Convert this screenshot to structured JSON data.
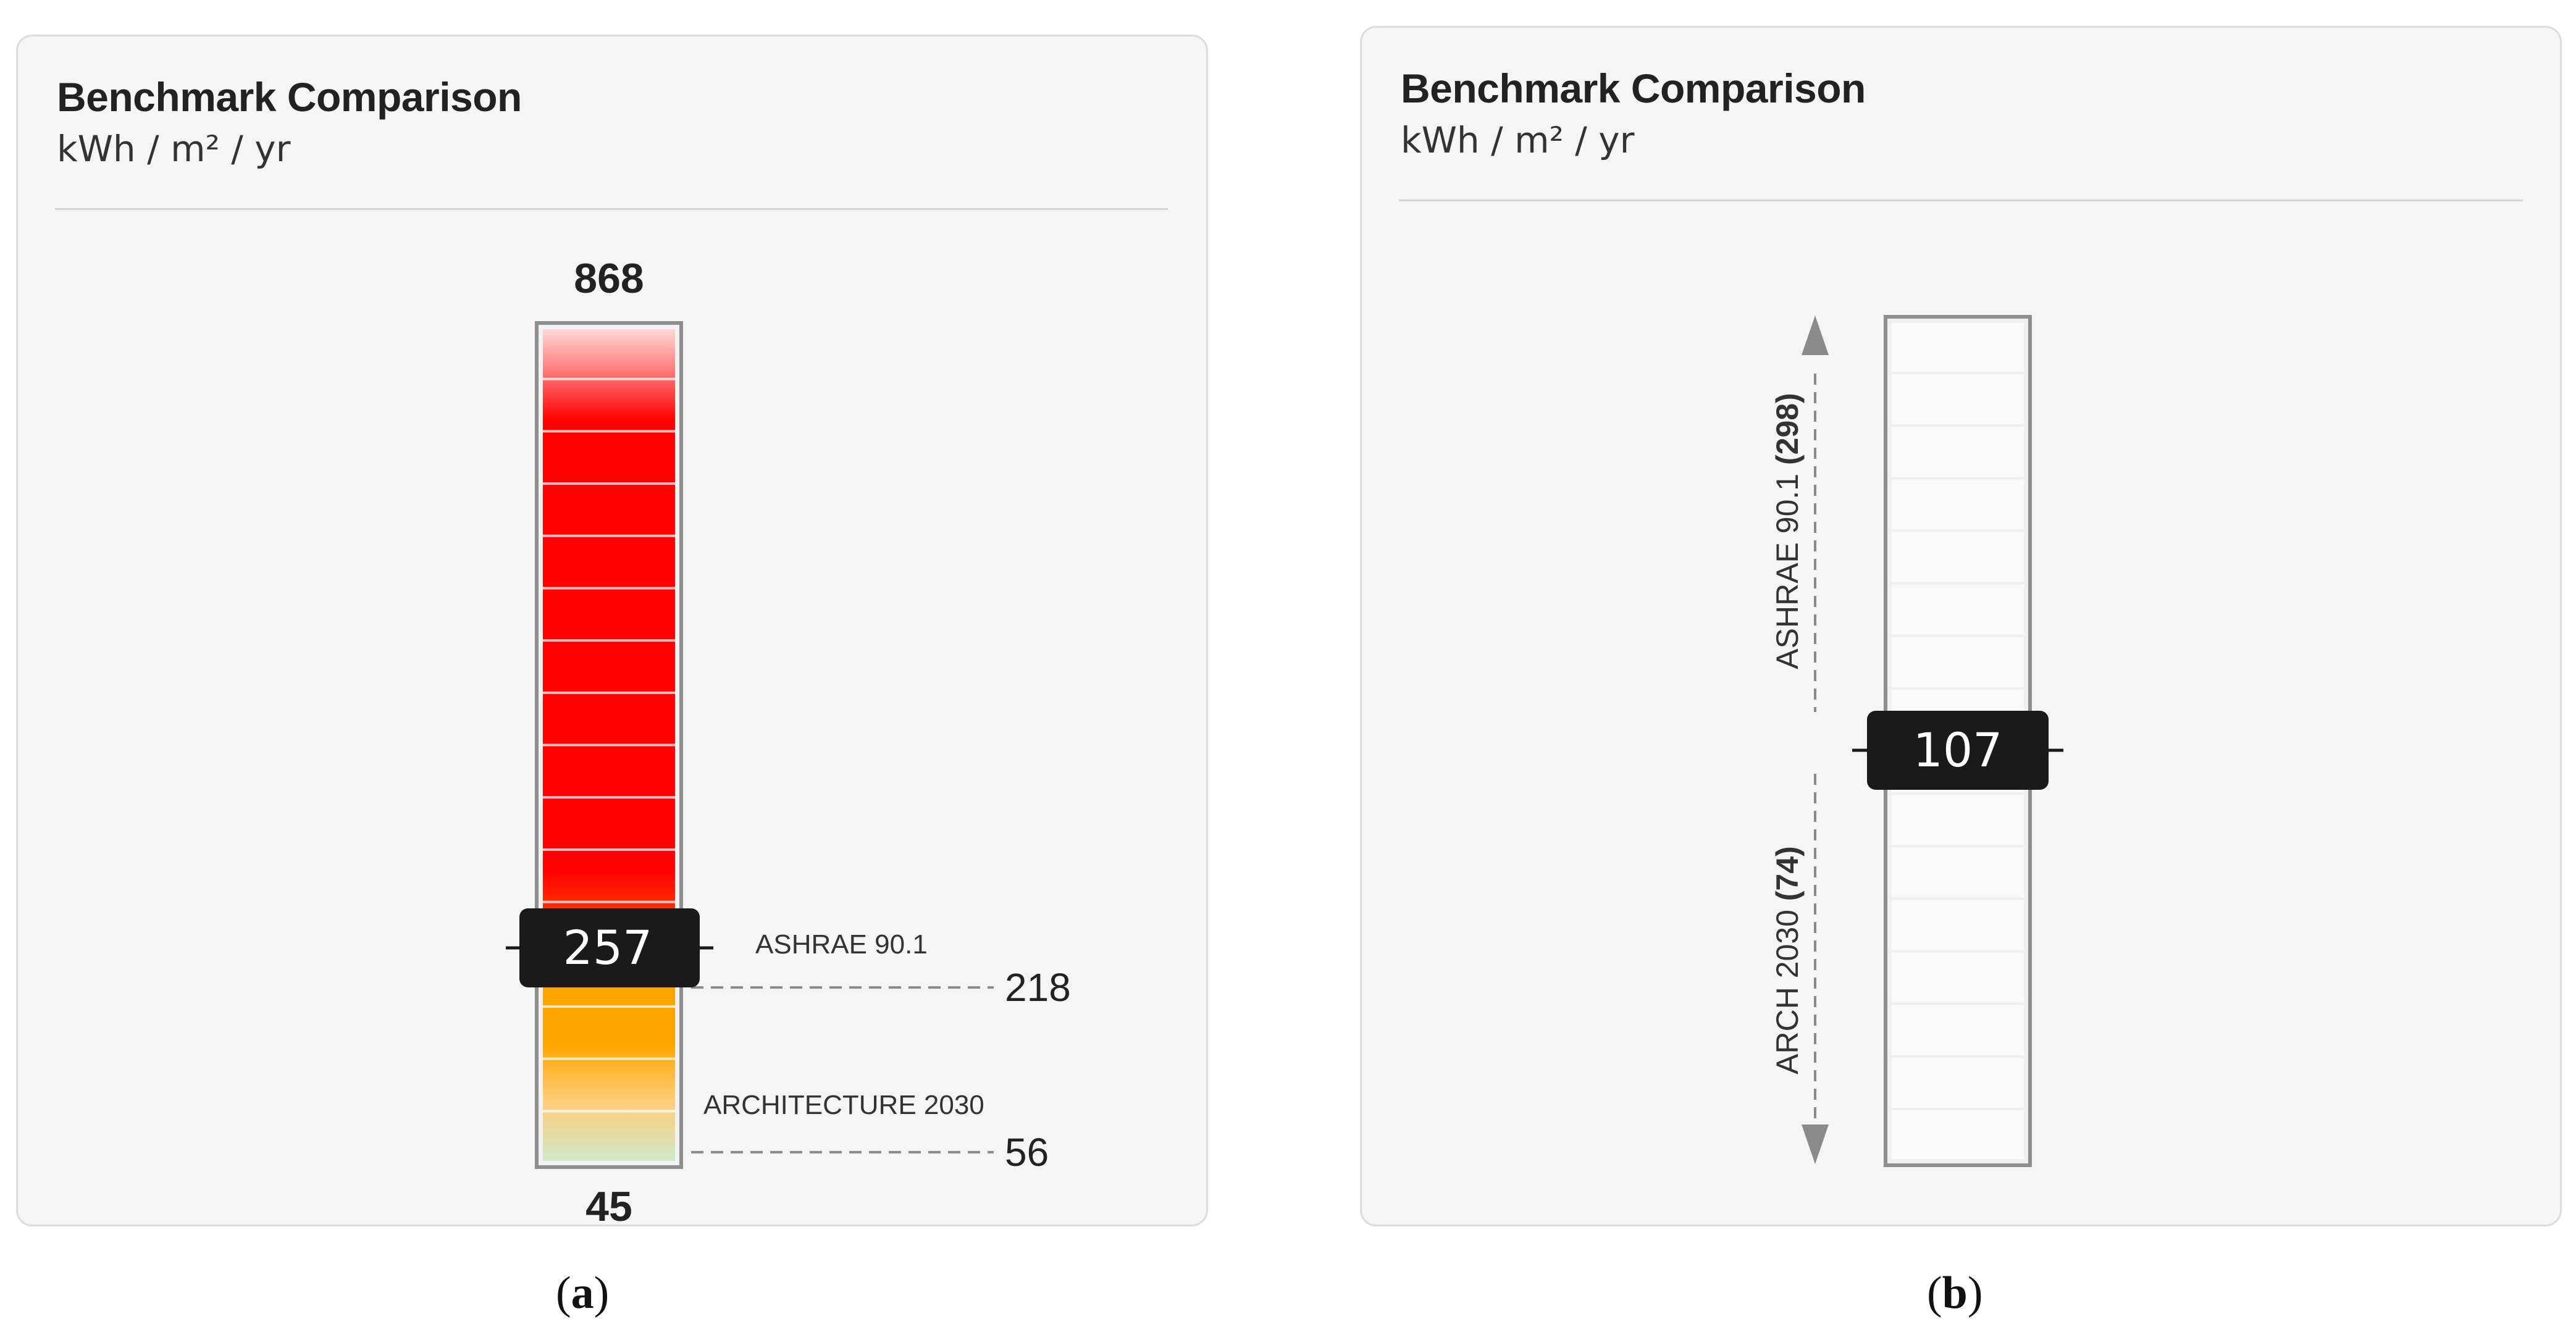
{
  "chart_data": [
    {
      "type": "bar",
      "panel_caption": "a",
      "title": "Benchmark Comparison",
      "subtitle": "kWh / m² / yr",
      "scale_max_label": "868",
      "scale_min_label": "45",
      "ylim": [
        45,
        868
      ],
      "current_value": 257,
      "current_value_label": "257",
      "benchmarks": [
        {
          "name": "ASHRAE 90.1",
          "value": 218,
          "value_label": "218"
        },
        {
          "name": "ARCHITECTURE 2030",
          "value": 56,
          "value_label": "56"
        }
      ],
      "colors": {
        "high": "#ff0000",
        "mid": "#ffa500",
        "low": "#cfe8c9",
        "marker": "#1a1a1a"
      }
    },
    {
      "type": "bar",
      "panel_caption": "b",
      "title": "Benchmark Comparison",
      "subtitle": "kWh / m² / yr",
      "current_value": 107,
      "current_value_label": "107",
      "benchmarks": [
        {
          "name": "ASHRAE 90.1",
          "value": 298,
          "label": "ASHRAE 90.1",
          "value_label": "(298)"
        },
        {
          "name": "ARCH 2030",
          "value": 74,
          "label": "ARCH 2030",
          "value_label": "(74)"
        }
      ],
      "colors": {
        "bar": "#fafafa",
        "marker": "#1a1a1a",
        "arrow": "#8a8a8a"
      }
    }
  ]
}
